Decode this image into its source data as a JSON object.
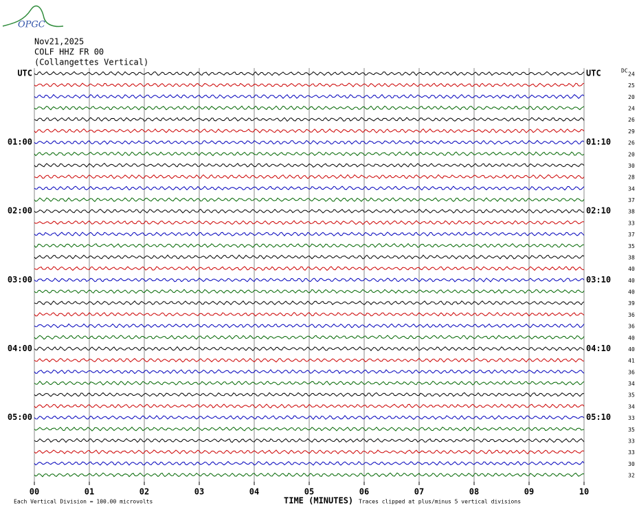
{
  "header": {
    "logo": "OPGC",
    "date": "Nov21,2025",
    "station": "COLF HHZ FR 00",
    "location": "(Collangettes Vertical)"
  },
  "chart_data": {
    "type": "helicorder",
    "left_labels": [
      "UTC",
      null,
      null,
      null,
      null,
      null,
      "01:00",
      null,
      null,
      null,
      null,
      null,
      "02:00",
      null,
      null,
      null,
      null,
      null,
      "03:00",
      null,
      null,
      null,
      null,
      null,
      "04:00",
      null,
      null,
      null,
      null,
      null,
      "05:00",
      null,
      null,
      null,
      null,
      null
    ],
    "right_labels": [
      "UTC",
      null,
      null,
      null,
      null,
      null,
      "01:10",
      null,
      null,
      null,
      null,
      null,
      "02:10",
      null,
      null,
      null,
      null,
      null,
      "03:10",
      null,
      null,
      null,
      null,
      null,
      "04:10",
      null,
      null,
      null,
      null,
      null,
      "05:10",
      null,
      null,
      null,
      null,
      null
    ],
    "dc_label": "DC",
    "dc_values": [
      24,
      25,
      20,
      24,
      26,
      29,
      26,
      20,
      30,
      28,
      34,
      37,
      38,
      33,
      37,
      35,
      38,
      40,
      40,
      40,
      39,
      36,
      36,
      40,
      40,
      41,
      36,
      34,
      35,
      34,
      33,
      35,
      33,
      33,
      30,
      32
    ],
    "trace_colors": [
      "#000000",
      "#cc0000",
      "#0000bb",
      "#006600"
    ],
    "xlim": [
      0,
      10
    ],
    "xticks": [
      {
        "value": 0,
        "label": "00"
      },
      {
        "value": 1,
        "label": "01"
      },
      {
        "value": 2,
        "label": "02"
      },
      {
        "value": 3,
        "label": "03"
      },
      {
        "value": 4,
        "label": "04"
      },
      {
        "value": 5,
        "label": "05"
      },
      {
        "value": 6,
        "label": "06"
      },
      {
        "value": 7,
        "label": "07"
      },
      {
        "value": 8,
        "label": "08"
      },
      {
        "value": 9,
        "label": "09"
      },
      {
        "value": 10,
        "label": "10"
      }
    ],
    "grid": true,
    "xlabel": "TIME (MINUTES)",
    "scale_note": "Each Vertical Division =  100.00 microvolts",
    "clip_note": "Traces clipped at plus/minus 5 vertical divisions"
  }
}
